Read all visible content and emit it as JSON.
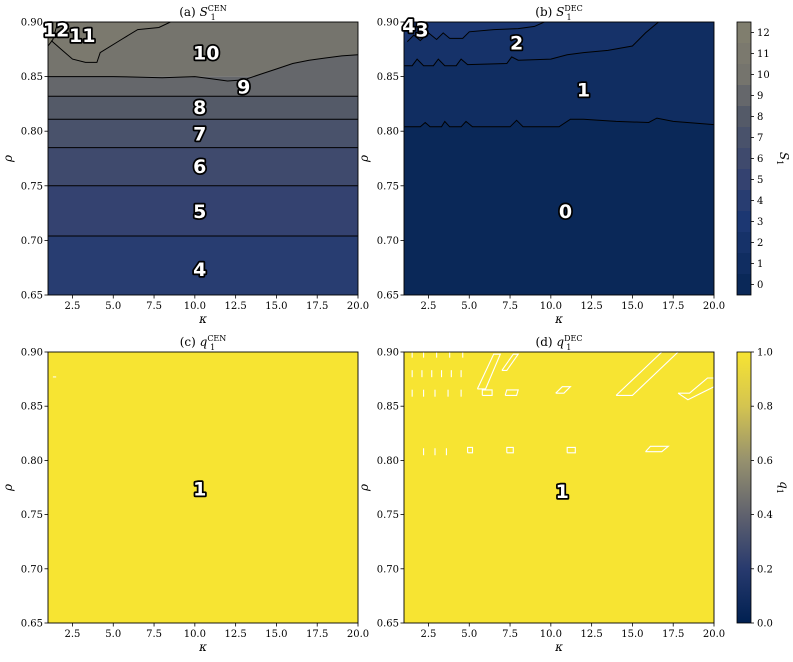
{
  "figure": {
    "x_label": "κ",
    "y_label": "ρ"
  },
  "chart_data": [
    {
      "id": "a",
      "type": "heatmap",
      "title_prefix": "(a)",
      "title_var": "S",
      "title_sub": "1",
      "title_sup": "CEN",
      "xlim": [
        1,
        20
      ],
      "ylim": [
        0.65,
        0.9
      ],
      "xticks": [
        "2.5",
        "5.0",
        "7.5",
        "10.0",
        "12.5",
        "15.0",
        "17.5",
        "20.0"
      ],
      "yticks": [
        "0.65",
        "0.70",
        "0.75",
        "0.80",
        "0.85",
        "0.90"
      ],
      "levels": [
        {
          "range": [
            0.65,
            0.704
          ],
          "value": 4
        },
        {
          "range": [
            0.704,
            0.75
          ],
          "value": 5
        },
        {
          "range": [
            0.75,
            0.785
          ],
          "value": 6
        },
        {
          "range": [
            0.785,
            0.811
          ],
          "value": 7
        },
        {
          "range": [
            0.811,
            0.832
          ],
          "value": 8
        },
        {
          "range": [
            0.832,
            0.85
          ],
          "value": 9
        },
        {
          "range": [
            0.85,
            0.9
          ],
          "value": 10
        }
      ],
      "boundary_9_10": [
        [
          1.0,
          0.85
        ],
        [
          5.0,
          0.85
        ],
        [
          8.0,
          0.849
        ],
        [
          10.0,
          0.85
        ],
        [
          11.0,
          0.848
        ],
        [
          12.0,
          0.846
        ],
        [
          13.0,
          0.847
        ],
        [
          14.0,
          0.852
        ],
        [
          15.0,
          0.857
        ],
        [
          16.0,
          0.862
        ],
        [
          17.0,
          0.865
        ],
        [
          18.0,
          0.867
        ],
        [
          19.0,
          0.869
        ],
        [
          20.0,
          0.87
        ]
      ],
      "boundary_10_11": [
        [
          1.2,
          0.883
        ],
        [
          1.8,
          0.875
        ],
        [
          2.5,
          0.866
        ],
        [
          3.3,
          0.863
        ],
        [
          4.0,
          0.863
        ],
        [
          4.2,
          0.872
        ],
        [
          5.5,
          0.884
        ],
        [
          6.5,
          0.893
        ],
        [
          7.8,
          0.895
        ],
        [
          8.5,
          0.9
        ]
      ],
      "contour_labels": [
        {
          "text": "4",
          "x": 10.3,
          "y": 0.674
        },
        {
          "text": "5",
          "x": 10.3,
          "y": 0.727
        },
        {
          "text": "6",
          "x": 10.3,
          "y": 0.768
        },
        {
          "text": "7",
          "x": 10.3,
          "y": 0.798
        },
        {
          "text": "8",
          "x": 10.3,
          "y": 0.822
        },
        {
          "text": "9",
          "x": 13.0,
          "y": 0.841
        },
        {
          "text": "10",
          "x": 10.7,
          "y": 0.872
        },
        {
          "text": "11",
          "x": 3.1,
          "y": 0.888
        },
        {
          "text": "12",
          "x": 1.5,
          "y": 0.893
        }
      ]
    },
    {
      "id": "b",
      "type": "heatmap",
      "title_prefix": "(b)",
      "title_var": "S",
      "title_sub": "1",
      "title_sup": "DEC",
      "xlim": [
        1,
        20
      ],
      "ylim": [
        0.65,
        0.9
      ],
      "xticks": [
        "2.5",
        "5.0",
        "7.5",
        "10.0",
        "12.5",
        "15.0",
        "17.5",
        "20.0"
      ],
      "yticks": [
        "0.65",
        "0.70",
        "0.75",
        "0.80",
        "0.85",
        "0.90"
      ],
      "boundary_0_1": [
        [
          1.0,
          0.804
        ],
        [
          2.0,
          0.804
        ],
        [
          2.3,
          0.808
        ],
        [
          2.6,
          0.804
        ],
        [
          3.3,
          0.804
        ],
        [
          3.5,
          0.809
        ],
        [
          3.8,
          0.804
        ],
        [
          4.5,
          0.804
        ],
        [
          4.8,
          0.809
        ],
        [
          5.2,
          0.804
        ],
        [
          7.5,
          0.804
        ],
        [
          7.9,
          0.81
        ],
        [
          8.3,
          0.804
        ],
        [
          10.5,
          0.804
        ],
        [
          11.2,
          0.811
        ],
        [
          12.0,
          0.811
        ],
        [
          14.0,
          0.809
        ],
        [
          16.0,
          0.808
        ],
        [
          16.5,
          0.812
        ],
        [
          17.5,
          0.809
        ],
        [
          20.0,
          0.806
        ]
      ],
      "boundary_1_2": [
        [
          1.0,
          0.86
        ],
        [
          1.5,
          0.86
        ],
        [
          1.8,
          0.866
        ],
        [
          2.2,
          0.86
        ],
        [
          2.8,
          0.86
        ],
        [
          3.1,
          0.866
        ],
        [
          3.5,
          0.86
        ],
        [
          4.2,
          0.86
        ],
        [
          4.5,
          0.866
        ],
        [
          4.9,
          0.861
        ],
        [
          7.3,
          0.862
        ],
        [
          7.6,
          0.868
        ],
        [
          8.0,
          0.865
        ],
        [
          10.0,
          0.866
        ],
        [
          11.0,
          0.87
        ],
        [
          12.0,
          0.872
        ],
        [
          13.5,
          0.874
        ],
        [
          15.0,
          0.878
        ],
        [
          15.8,
          0.89
        ],
        [
          16.6,
          0.9
        ]
      ],
      "boundary_2_3": [
        [
          1.2,
          0.882
        ],
        [
          1.6,
          0.888
        ],
        [
          2.0,
          0.883
        ],
        [
          2.5,
          0.89
        ],
        [
          3.0,
          0.884
        ],
        [
          3.4,
          0.89
        ],
        [
          3.8,
          0.885
        ],
        [
          4.6,
          0.885
        ],
        [
          5.0,
          0.891
        ],
        [
          6.5,
          0.893
        ],
        [
          8.0,
          0.894
        ],
        [
          9.0,
          0.896
        ],
        [
          9.6,
          0.9
        ]
      ],
      "contour_labels": [
        {
          "text": "0",
          "x": 10.9,
          "y": 0.727
        },
        {
          "text": "1",
          "x": 12.0,
          "y": 0.838
        },
        {
          "text": "2",
          "x": 7.9,
          "y": 0.881
        },
        {
          "text": "3",
          "x": 2.1,
          "y": 0.893
        },
        {
          "text": "4",
          "x": 1.3,
          "y": 0.897
        }
      ]
    },
    {
      "id": "c",
      "type": "heatmap",
      "title_prefix": "(c)",
      "title_var": "q",
      "title_sub": "1",
      "title_sup": "CEN",
      "xlim": [
        1,
        20
      ],
      "ylim": [
        0.65,
        0.9
      ],
      "xticks": [
        "2.5",
        "5.0",
        "7.5",
        "10.0",
        "12.5",
        "15.0",
        "17.5",
        "20.0"
      ],
      "yticks": [
        "0.65",
        "0.70",
        "0.75",
        "0.80",
        "0.85",
        "0.90"
      ],
      "fill_value": 1.0,
      "contour_labels": [
        {
          "text": "1",
          "x": 10.3,
          "y": 0.774
        }
      ]
    },
    {
      "id": "d",
      "type": "heatmap",
      "title_prefix": "(d)",
      "title_var": "q",
      "title_sub": "1",
      "title_sup": "DEC",
      "xlim": [
        1,
        20
      ],
      "ylim": [
        0.65,
        0.9
      ],
      "xticks": [
        "2.5",
        "5.0",
        "7.5",
        "10.0",
        "12.5",
        "15.0",
        "17.5",
        "20.0"
      ],
      "yticks": [
        "0.65",
        "0.70",
        "0.75",
        "0.80",
        "0.85",
        "0.90"
      ],
      "fill_value": 1.0,
      "white_contours": [
        [
          [
            5.5,
            0.866
          ],
          [
            6.5,
            0.898
          ],
          [
            6.9,
            0.898
          ],
          [
            6.0,
            0.866
          ],
          [
            5.5,
            0.866
          ]
        ],
        [
          [
            7.0,
            0.883
          ],
          [
            7.7,
            0.898
          ],
          [
            8.0,
            0.898
          ],
          [
            7.3,
            0.883
          ],
          [
            7.0,
            0.883
          ]
        ],
        [
          [
            14.0,
            0.86
          ],
          [
            15.0,
            0.86
          ],
          [
            17.8,
            0.9
          ],
          [
            16.8,
            0.9
          ],
          [
            14.0,
            0.86
          ]
        ],
        [
          [
            10.3,
            0.862
          ],
          [
            10.8,
            0.862
          ],
          [
            11.2,
            0.868
          ],
          [
            10.7,
            0.868
          ],
          [
            10.3,
            0.862
          ]
        ],
        [
          [
            17.8,
            0.862
          ],
          [
            18.5,
            0.862
          ],
          [
            19.6,
            0.876
          ],
          [
            20.0,
            0.876
          ],
          [
            20.0,
            0.868
          ],
          [
            18.4,
            0.856
          ],
          [
            17.8,
            0.862
          ]
        ],
        [
          [
            15.8,
            0.808
          ],
          [
            16.8,
            0.808
          ],
          [
            17.2,
            0.813
          ],
          [
            16.1,
            0.813
          ],
          [
            15.8,
            0.808
          ]
        ],
        [
          [
            7.2,
            0.86
          ],
          [
            7.9,
            0.86
          ],
          [
            8.0,
            0.865
          ],
          [
            7.3,
            0.865
          ],
          [
            7.2,
            0.86
          ]
        ],
        [
          [
            5.8,
            0.86
          ],
          [
            6.4,
            0.86
          ],
          [
            6.4,
            0.865
          ],
          [
            5.8,
            0.865
          ],
          [
            5.8,
            0.86
          ]
        ],
        [
          [
            7.3,
            0.807
          ],
          [
            7.7,
            0.807
          ],
          [
            7.7,
            0.812
          ],
          [
            7.3,
            0.812
          ],
          [
            7.3,
            0.807
          ]
        ],
        [
          [
            11.0,
            0.807
          ],
          [
            11.5,
            0.807
          ],
          [
            11.5,
            0.812
          ],
          [
            11.0,
            0.812
          ],
          [
            11.0,
            0.807
          ]
        ],
        [
          [
            4.9,
            0.807
          ],
          [
            5.2,
            0.807
          ],
          [
            5.2,
            0.812
          ],
          [
            4.9,
            0.812
          ],
          [
            4.9,
            0.807
          ]
        ]
      ],
      "white_ticks": [
        {
          "x": 1.5,
          "y": 0.88
        },
        {
          "x": 2.1,
          "y": 0.88
        },
        {
          "x": 2.7,
          "y": 0.88
        },
        {
          "x": 3.3,
          "y": 0.88
        },
        {
          "x": 3.9,
          "y": 0.88
        },
        {
          "x": 4.5,
          "y": 0.88
        },
        {
          "x": 1.5,
          "y": 0.862
        },
        {
          "x": 2.2,
          "y": 0.862
        },
        {
          "x": 2.9,
          "y": 0.862
        },
        {
          "x": 3.7,
          "y": 0.862
        },
        {
          "x": 4.5,
          "y": 0.862
        },
        {
          "x": 2.2,
          "y": 0.808
        },
        {
          "x": 2.9,
          "y": 0.808
        },
        {
          "x": 3.6,
          "y": 0.808
        },
        {
          "x": 1.5,
          "y": 0.898
        },
        {
          "x": 2.2,
          "y": 0.898
        },
        {
          "x": 3.0,
          "y": 0.898
        },
        {
          "x": 3.8,
          "y": 0.898
        },
        {
          "x": 4.6,
          "y": 0.898
        }
      ],
      "contour_labels": [
        {
          "text": "1",
          "x": 10.7,
          "y": 0.772
        }
      ]
    }
  ],
  "colorbars": [
    {
      "id": "S",
      "label_var": "S",
      "label_sub": "1",
      "ticks": [
        "0",
        "1",
        "2",
        "3",
        "4",
        "5",
        "6",
        "7",
        "8",
        "9",
        "10",
        "11",
        "12"
      ],
      "range": [
        -0.5,
        12.5
      ],
      "top_color": "#7f7d6c",
      "bottom_color": "#0a2b5c"
    },
    {
      "id": "q",
      "label_var": "q",
      "label_sub": "1",
      "ticks": [
        "0.0",
        "0.2",
        "0.4",
        "0.6",
        "0.8",
        "1.0"
      ],
      "range": [
        0,
        1
      ],
      "top_color": "#f5e12e",
      "bottom_color": "#002051"
    }
  ]
}
